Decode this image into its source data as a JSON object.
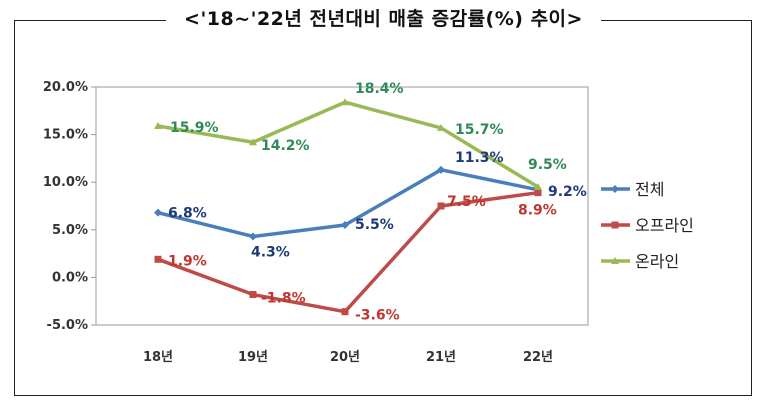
{
  "chart_data": {
    "type": "line",
    "title": "<'18~'22년 전년대비 매출 증감률(%) 추이>",
    "categories": [
      "18년",
      "19년",
      "20년",
      "21년",
      "22년"
    ],
    "ylim": [
      -5,
      20
    ],
    "yticks": [
      "20.0%",
      "15.0%",
      "10.0%",
      "5.0%",
      "0.0%",
      "-5.0%"
    ],
    "ytick_values": [
      20,
      15,
      10,
      5,
      0,
      -5
    ],
    "grid": false,
    "legend_position": "right",
    "series": [
      {
        "name": "전체",
        "color": "#4a7ebb",
        "label_color": "#1f3a7a",
        "values": [
          6.8,
          4.3,
          5.5,
          11.3,
          9.2
        ],
        "labels": [
          "6.8%",
          "4.3%",
          "5.5%",
          "11.3%",
          "9.2%"
        ]
      },
      {
        "name": "오프라인",
        "color": "#be4b48",
        "label_color": "#c0352f",
        "values": [
          1.9,
          -1.8,
          -3.6,
          7.5,
          8.9
        ],
        "labels": [
          "1.9%",
          "-1.8%",
          "-3.6%",
          "7.5%",
          "8.9%"
        ]
      },
      {
        "name": "온라인",
        "color": "#98b954",
        "label_color": "#2e8b57",
        "values": [
          15.9,
          14.2,
          18.4,
          15.7,
          9.5
        ],
        "labels": [
          "15.9%",
          "14.2%",
          "18.4%",
          "15.7%",
          "9.5%"
        ]
      }
    ]
  }
}
